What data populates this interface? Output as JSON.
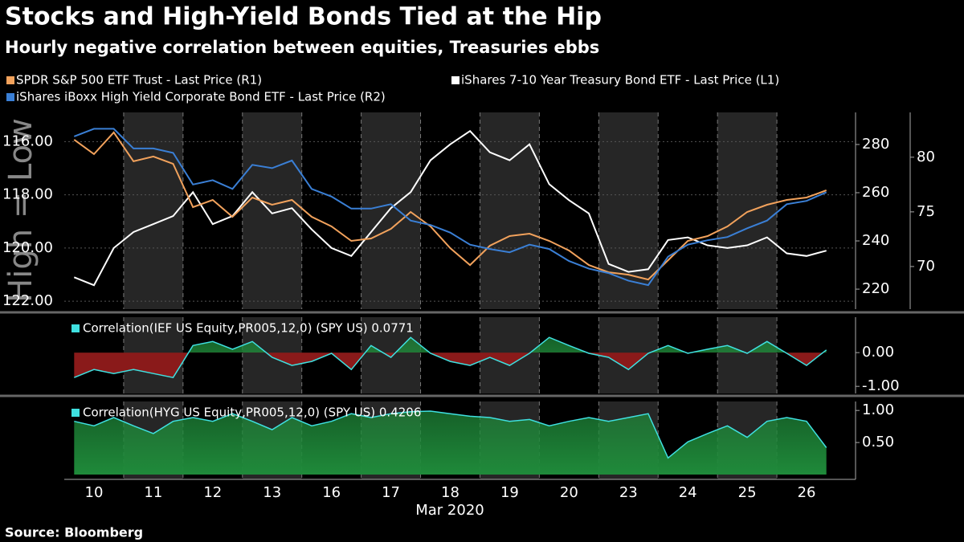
{
  "source": "Source: Bloomberg",
  "chart_data": [
    {
      "type": "line",
      "title": "Stocks and High-Yield Bonds Tied at the Hip",
      "subtitle": "Hourly negative correlation between equities, Treasuries ebbs",
      "y_label": "High = Low",
      "x_label": "Mar 2020",
      "x": [
        null,
        "10",
        null,
        null,
        "11",
        null,
        null,
        "12",
        null,
        null,
        "13",
        null,
        null,
        "16",
        null,
        null,
        "17",
        null,
        null,
        "18",
        null,
        null,
        "19",
        null,
        null,
        "20",
        null,
        null,
        "23",
        null,
        null,
        "24",
        null,
        null,
        "25",
        null,
        null,
        "26",
        null
      ],
      "series": [
        {
          "name": "SPDR S&P 500 ETF Trust - Last Price (R1)",
          "color": "#f2a25c",
          "axis": "y2",
          "values": [
            282,
            276,
            285,
            273,
            275,
            272,
            254,
            257,
            250,
            258,
            255,
            257,
            250,
            246,
            240,
            241,
            245,
            252,
            246,
            237,
            230,
            238,
            242,
            243,
            240,
            236,
            230,
            227,
            226,
            224,
            232,
            240,
            242,
            246,
            252,
            255,
            257,
            258,
            261
          ]
        },
        {
          "name": "iShares 7-10 Year Treasury Bond ETF - Last Price (L1)",
          "color": "#ffffff",
          "axis": "y",
          "values": [
            121.1,
            121.4,
            120,
            119.4,
            119.1,
            118.8,
            117.9,
            119.1,
            118.8,
            117.9,
            118.7,
            118.5,
            119.3,
            120,
            120.3,
            119.4,
            118.5,
            117.9,
            116.7,
            116.1,
            115.6,
            116.4,
            116.7,
            116.1,
            117.6,
            118.2,
            118.7,
            120.6,
            120.9,
            120.8,
            119.7,
            119.6,
            119.9,
            120,
            119.9,
            119.6,
            120.2,
            120.3,
            120.1
          ]
        },
        {
          "name": "iShares iBoxx High Yield Corporate Bond ETF - Last Price (R2)",
          "color": "#3a7fd5",
          "axis": "y3",
          "values": [
            81.9,
            82.6,
            82.6,
            80.8,
            80.8,
            80.4,
            77.5,
            77.9,
            77.1,
            79.3,
            79,
            79.7,
            77.1,
            76.4,
            75.3,
            75.3,
            75.7,
            74.2,
            73.8,
            73.1,
            72,
            71.6,
            71.3,
            72,
            71.6,
            70.5,
            69.8,
            69.4,
            68.7,
            68.3,
            70.9,
            72,
            72.4,
            72.7,
            73.5,
            74.2,
            75.7,
            76,
            76.8
          ]
        }
      ],
      "ylim": [
        122.3,
        114.9
      ],
      "yticks": [
        {
          "value": 116,
          "label": "116.00"
        },
        {
          "value": 118,
          "label": "118.00"
        },
        {
          "value": 120,
          "label": "120.00"
        },
        {
          "value": 122,
          "label": "122.00"
        }
      ],
      "y2lim": [
        211.7,
        293.3
      ],
      "y2ticks": [
        220,
        240,
        260,
        280
      ],
      "y3lim": [
        66.1,
        84.1
      ],
      "y3ticks": [
        70,
        75,
        80
      ]
    },
    {
      "type": "area",
      "label": "Correlation(IEF US Equity,PR005,12,0) (SPY US) 0.0771",
      "color": "#3fe0e0",
      "positive_color": "#1f8a3a",
      "negative_color": "#8a1a1a",
      "values": [
        -0.74,
        -0.5,
        -0.62,
        -0.5,
        -0.62,
        -0.74,
        0.21,
        0.33,
        0.1,
        0.33,
        -0.14,
        -0.38,
        -0.26,
        -0.02,
        -0.5,
        0.21,
        -0.14,
        0.45,
        -0.02,
        -0.26,
        -0.38,
        -0.14,
        -0.38,
        -0.02,
        0.45,
        0.21,
        -0.02,
        -0.14,
        -0.5,
        -0.02,
        0.21,
        -0.02,
        0.1,
        0.21,
        -0.02,
        0.33,
        -0.02,
        -0.38,
        0.08
      ],
      "ylim": [
        -1.21,
        1.05
      ],
      "yticks": [
        {
          "value": 0,
          "label": "0.00"
        },
        {
          "value": -1,
          "label": "-1.00"
        }
      ]
    },
    {
      "type": "area",
      "label": "Correlation(HYG US Equity,PR005,12,0) (SPY US) 0.4206",
      "color": "#3fe0e0",
      "positive_color": "#1f8a3a",
      "negative_color": "#8a1a1a",
      "values": [
        0.83,
        0.76,
        0.89,
        0.76,
        0.64,
        0.83,
        0.89,
        0.83,
        0.95,
        0.83,
        0.7,
        0.89,
        0.76,
        0.83,
        0.95,
        0.89,
        0.95,
        0.98,
        0.99,
        0.95,
        0.91,
        0.89,
        0.83,
        0.86,
        0.76,
        0.83,
        0.89,
        0.83,
        0.89,
        0.95,
        0.26,
        0.51,
        0.64,
        0.76,
        0.58,
        0.83,
        0.89,
        0.83,
        0.42
      ],
      "ylim": [
        -0.075,
        1.14
      ],
      "yticks": [
        {
          "value": 1,
          "label": "1.00"
        },
        {
          "value": 0.5,
          "label": "0.50"
        }
      ]
    }
  ]
}
